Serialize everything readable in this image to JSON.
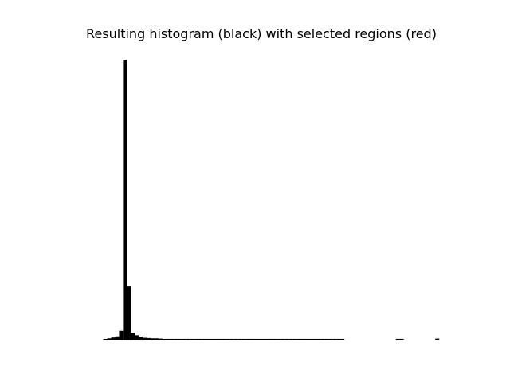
{
  "chart_data": {
    "type": "bar",
    "title": "Resulting histogram (black) with selected regions (red)",
    "xlabel": "",
    "ylabel": "",
    "axes_visible": false,
    "grid": false,
    "bar_color": "#000000",
    "xlim": [
      0,
      100
    ],
    "ylim": [
      0,
      100
    ],
    "series": [
      {
        "values": [
          0,
          0,
          0,
          0,
          0,
          0,
          0,
          0,
          0,
          0,
          0.2,
          0.5,
          0.8,
          1.2,
          3.2,
          100,
          19,
          2.5,
          1.6,
          1.1,
          0.7,
          0.6,
          0.5,
          0.5,
          0.4,
          0.3,
          0.3,
          0.3,
          0.3,
          0.3,
          0.3,
          0.3,
          0.3,
          0.3,
          0.3,
          0.3,
          0.3,
          0.3,
          0.3,
          0.3,
          0.3,
          0.3,
          0.3,
          0.3,
          0.3,
          0.3,
          0.3,
          0.3,
          0.3,
          0.3,
          0.3,
          0.3,
          0.3,
          0.3,
          0.3,
          0.3,
          0.3,
          0.3,
          0.3,
          0.3,
          0.3,
          0.3,
          0.3,
          0.3,
          0.3,
          0.3,
          0.3,
          0.3,
          0.3,
          0.3,
          0.3,
          0,
          0,
          0,
          0,
          0,
          0,
          0,
          0,
          0,
          0,
          0,
          0,
          0,
          0.3,
          0.3,
          0,
          0,
          0,
          0,
          0,
          0,
          0,
          0,
          0.4,
          0,
          0,
          0,
          0,
          0
        ]
      }
    ]
  }
}
